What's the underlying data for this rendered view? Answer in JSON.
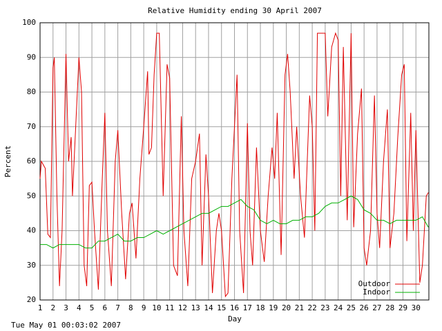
{
  "chart_data": {
    "type": "line",
    "title": "Relative Humidity ending 30 April 2007",
    "x_label": "Day",
    "y_label": "Percent",
    "footer": "Tue May 01 00:03:02 2007",
    "xlim": [
      1,
      31
    ],
    "ylim": [
      20,
      100
    ],
    "xticks": [
      1,
      2,
      3,
      4,
      5,
      6,
      7,
      8,
      9,
      10,
      11,
      12,
      13,
      14,
      15,
      16,
      17,
      18,
      19,
      20,
      21,
      22,
      23,
      24,
      25,
      26,
      27,
      28,
      29,
      30
    ],
    "yticks": [
      20,
      30,
      40,
      50,
      60,
      70,
      80,
      90,
      100
    ],
    "grid": true,
    "legend": "lower right",
    "series": [
      {
        "name": "Outdoor",
        "color": "#e00000",
        "x": [
          1,
          1.1,
          1.4,
          1.6,
          1.8,
          2.0,
          2.1,
          2.3,
          2.5,
          2.7,
          3.0,
          3.2,
          3.4,
          3.5,
          4.0,
          4.2,
          4.4,
          4.6,
          4.8,
          5.0,
          5.2,
          5.5,
          5.8,
          6.0,
          6.2,
          6.5,
          6.8,
          7.0,
          7.3,
          7.6,
          7.9,
          8.1,
          8.4,
          8.7,
          9.0,
          9.3,
          9.4,
          9.6,
          9.8,
          10.0,
          10.2,
          10.5,
          10.8,
          11.0,
          11.3,
          11.6,
          11.9,
          12.1,
          12.4,
          12.7,
          13.0,
          13.3,
          13.5,
          13.8,
          14.0,
          14.3,
          14.6,
          14.8,
          15.0,
          15.3,
          15.5,
          15.8,
          16.0,
          16.2,
          16.4,
          16.7,
          17.0,
          17.2,
          17.4,
          17.7,
          18.0,
          18.3,
          18.6,
          18.9,
          19.1,
          19.3,
          19.6,
          19.9,
          20.1,
          20.3,
          20.6,
          20.8,
          21.1,
          21.4,
          21.8,
          22.0,
          22.2,
          22.4,
          22.7,
          23.0,
          23.2,
          23.5,
          23.8,
          24.0,
          24.2,
          24.4,
          24.7,
          25.0,
          25.2,
          25.5,
          25.8,
          26.0,
          26.2,
          26.5,
          26.8,
          27.0,
          27.2,
          27.5,
          27.8,
          28.0,
          28.3,
          28.6,
          28.9,
          29.1,
          29.3,
          29.6,
          29.8,
          30.0,
          30.3,
          30.5,
          30.8,
          30.96
        ],
        "values": [
          55,
          60,
          58,
          39,
          38,
          87,
          90,
          50,
          24,
          40,
          91,
          60,
          67,
          50,
          90,
          80,
          30,
          24,
          53,
          54,
          40,
          23,
          55,
          74,
          40,
          24,
          60,
          69,
          45,
          26,
          45,
          48,
          32,
          55,
          70,
          86,
          62,
          64,
          85,
          97,
          97,
          50,
          88,
          84,
          30,
          27,
          73,
          40,
          24,
          55,
          60,
          68,
          30,
          62,
          50,
          22,
          40,
          45,
          40,
          21,
          22,
          55,
          70,
          85,
          40,
          22,
          71,
          40,
          30,
          64,
          40,
          31,
          50,
          64,
          55,
          74,
          33,
          85,
          91,
          80,
          55,
          70,
          50,
          38,
          79,
          70,
          40,
          97,
          97,
          97,
          73,
          93,
          97,
          95,
          50,
          93,
          43,
          97,
          41,
          68,
          81,
          35,
          30,
          40,
          79,
          45,
          35,
          60,
          75,
          35,
          45,
          67,
          85,
          88,
          37,
          74,
          40,
          69,
          25,
          30,
          50,
          51
        ]
      },
      {
        "name": "Indoor",
        "color": "#00b000",
        "x": [
          1,
          1.5,
          2,
          2.5,
          3,
          3.5,
          4,
          4.5,
          5,
          5.5,
          6,
          6.5,
          7,
          7.5,
          8,
          8.5,
          9,
          9.5,
          10,
          10.5,
          11,
          11.5,
          12,
          12.5,
          13,
          13.5,
          14,
          14.5,
          15,
          15.5,
          16,
          16.5,
          17,
          17.5,
          18,
          18.5,
          19,
          19.5,
          20,
          20.5,
          21,
          21.5,
          22,
          22.5,
          23,
          23.5,
          24,
          24.5,
          25,
          25.5,
          26,
          26.5,
          27,
          27.5,
          28,
          28.5,
          29,
          29.5,
          30,
          30.5,
          30.96
        ],
        "values": [
          36,
          36,
          35,
          36,
          36,
          36,
          36,
          35,
          35,
          37,
          37,
          38,
          39,
          37,
          37,
          38,
          38,
          39,
          40,
          39,
          40,
          41,
          42,
          43,
          44,
          45,
          45,
          46,
          47,
          47,
          48,
          49,
          47,
          46,
          43,
          42,
          43,
          42,
          42,
          43,
          43,
          44,
          44,
          45,
          47,
          48,
          48,
          49,
          50,
          49,
          46,
          45,
          43,
          43,
          42,
          43,
          43,
          43,
          43,
          44,
          41
        ]
      }
    ]
  }
}
